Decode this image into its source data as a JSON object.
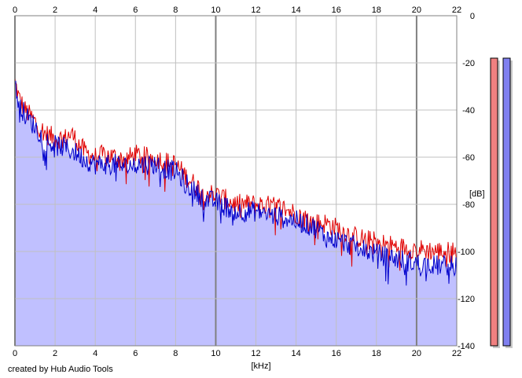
{
  "credit": "created by Hub Audio Tools",
  "colors": {
    "left_channel": "#e00000",
    "right_channel": "#0000cc",
    "fill": "#c0c0ff",
    "grid_major": "#808080",
    "grid_minor": "#c0c0c0",
    "meter_left": "#f08080",
    "meter_right": "#8080f0"
  },
  "chart_data": {
    "type": "line",
    "title": "",
    "xlabel": "[kHz]",
    "ylabel": "[dB]",
    "xlim": [
      0,
      22
    ],
    "ylim": [
      -140,
      0
    ],
    "x_ticks": [
      "0",
      "2",
      "4",
      "6",
      "8",
      "10",
      "12",
      "14",
      "16",
      "18",
      "20",
      "22"
    ],
    "y_ticks": [
      "0",
      "-20",
      "-40",
      "-60",
      "-80",
      "-100",
      "-120",
      "-140"
    ],
    "grid": true,
    "legend": "none",
    "filled_area": true,
    "series": [
      {
        "color": "#e00000",
        "x": [
          0,
          0.2,
          0.5,
          1,
          1.5,
          2,
          2.5,
          2.8,
          3.5,
          4,
          4.5,
          5,
          5.5,
          6,
          6.5,
          7,
          7.5,
          8,
          8.5,
          9,
          9.5,
          10,
          11,
          12,
          13,
          13.5,
          14,
          15,
          15.5,
          16,
          17,
          18,
          19,
          20,
          21,
          22
        ],
        "y": [
          -28,
          -35,
          -40,
          -45,
          -50,
          -52,
          -52,
          -50,
          -58,
          -60,
          -59,
          -60,
          -61,
          -59,
          -60,
          -60,
          -62,
          -63,
          -68,
          -72,
          -75,
          -76,
          -80,
          -80,
          -81,
          -82,
          -84,
          -88,
          -88,
          -90,
          -94,
          -96,
          -98,
          -99,
          -100,
          -100
        ]
      },
      {
        "color": "#0000cc",
        "x": [
          0,
          0.2,
          0.5,
          1,
          1.5,
          2,
          2.5,
          3,
          3.5,
          4,
          4.5,
          5,
          5.5,
          6,
          6.5,
          7,
          7.5,
          8,
          8.5,
          9,
          9.5,
          10,
          11,
          12,
          13,
          14,
          15,
          15.5,
          16,
          17,
          18,
          19,
          20,
          21,
          22
        ],
        "y": [
          -30,
          -37,
          -42,
          -47,
          -53,
          -55,
          -56,
          -58,
          -61,
          -63,
          -63,
          -63,
          -64,
          -63,
          -63,
          -63,
          -65,
          -66,
          -71,
          -75,
          -78,
          -79,
          -83,
          -83,
          -85,
          -87,
          -90,
          -94,
          -95,
          -98,
          -101,
          -103,
          -105,
          -106,
          -106
        ]
      }
    ],
    "meters": [
      {
        "color": "#f08080",
        "value": -10
      },
      {
        "color": "#8080f0",
        "value": -10
      }
    ]
  }
}
